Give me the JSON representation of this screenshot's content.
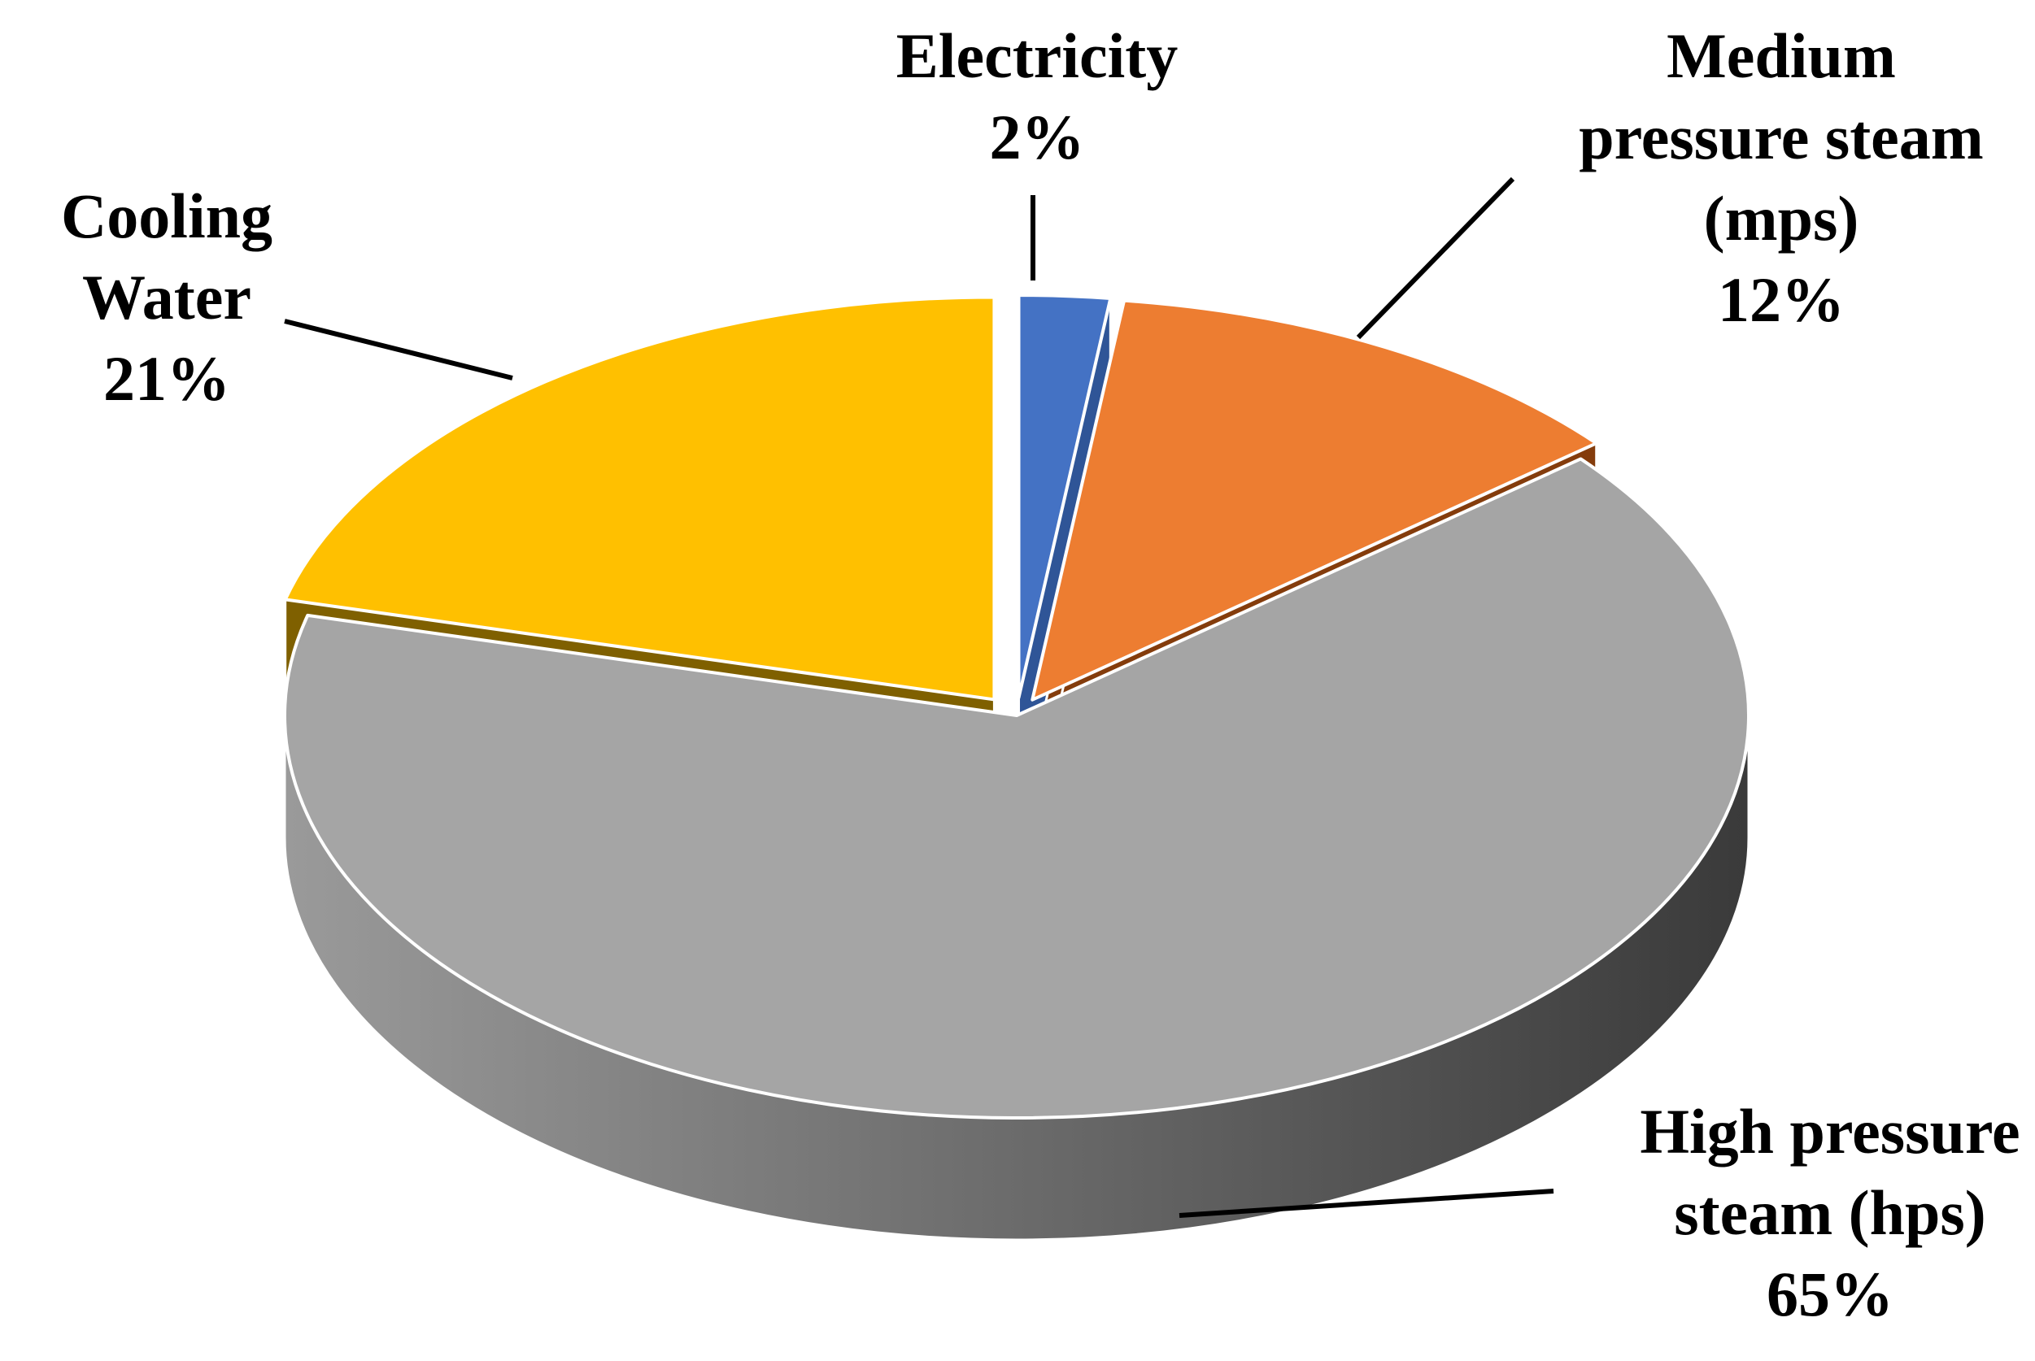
{
  "chart_data": {
    "type": "pie",
    "style": "3d-exploded",
    "slices": [
      {
        "name": "Electricity",
        "value": 2,
        "percent_label": "2%",
        "label_lines": [
          "Electricity",
          "2%"
        ],
        "color": "#4472C4",
        "side_color": "#2F5597"
      },
      {
        "name": "Medium pressure steam (mps)",
        "value": 12,
        "percent_label": "12%",
        "label_lines": [
          "Medium",
          "pressure steam",
          "(mps)",
          "12%"
        ],
        "color": "#ED7D31",
        "side_color": "#843C0C"
      },
      {
        "name": "High pressure steam (hps)",
        "value": 65,
        "percent_label": "65%",
        "label_lines": [
          "High pressure",
          "steam (hps)",
          "65%"
        ],
        "color": "#A5A5A5",
        "side_color": "#5A5A5A"
      },
      {
        "name": "Cooling Water",
        "value": 21,
        "percent_label": "21%",
        "label_lines": [
          "Cooling",
          "Water",
          "21%"
        ],
        "color": "#FFC000",
        "side_color": "#7F6000"
      }
    ],
    "legend": "none",
    "labels": "outside with leader lines"
  }
}
